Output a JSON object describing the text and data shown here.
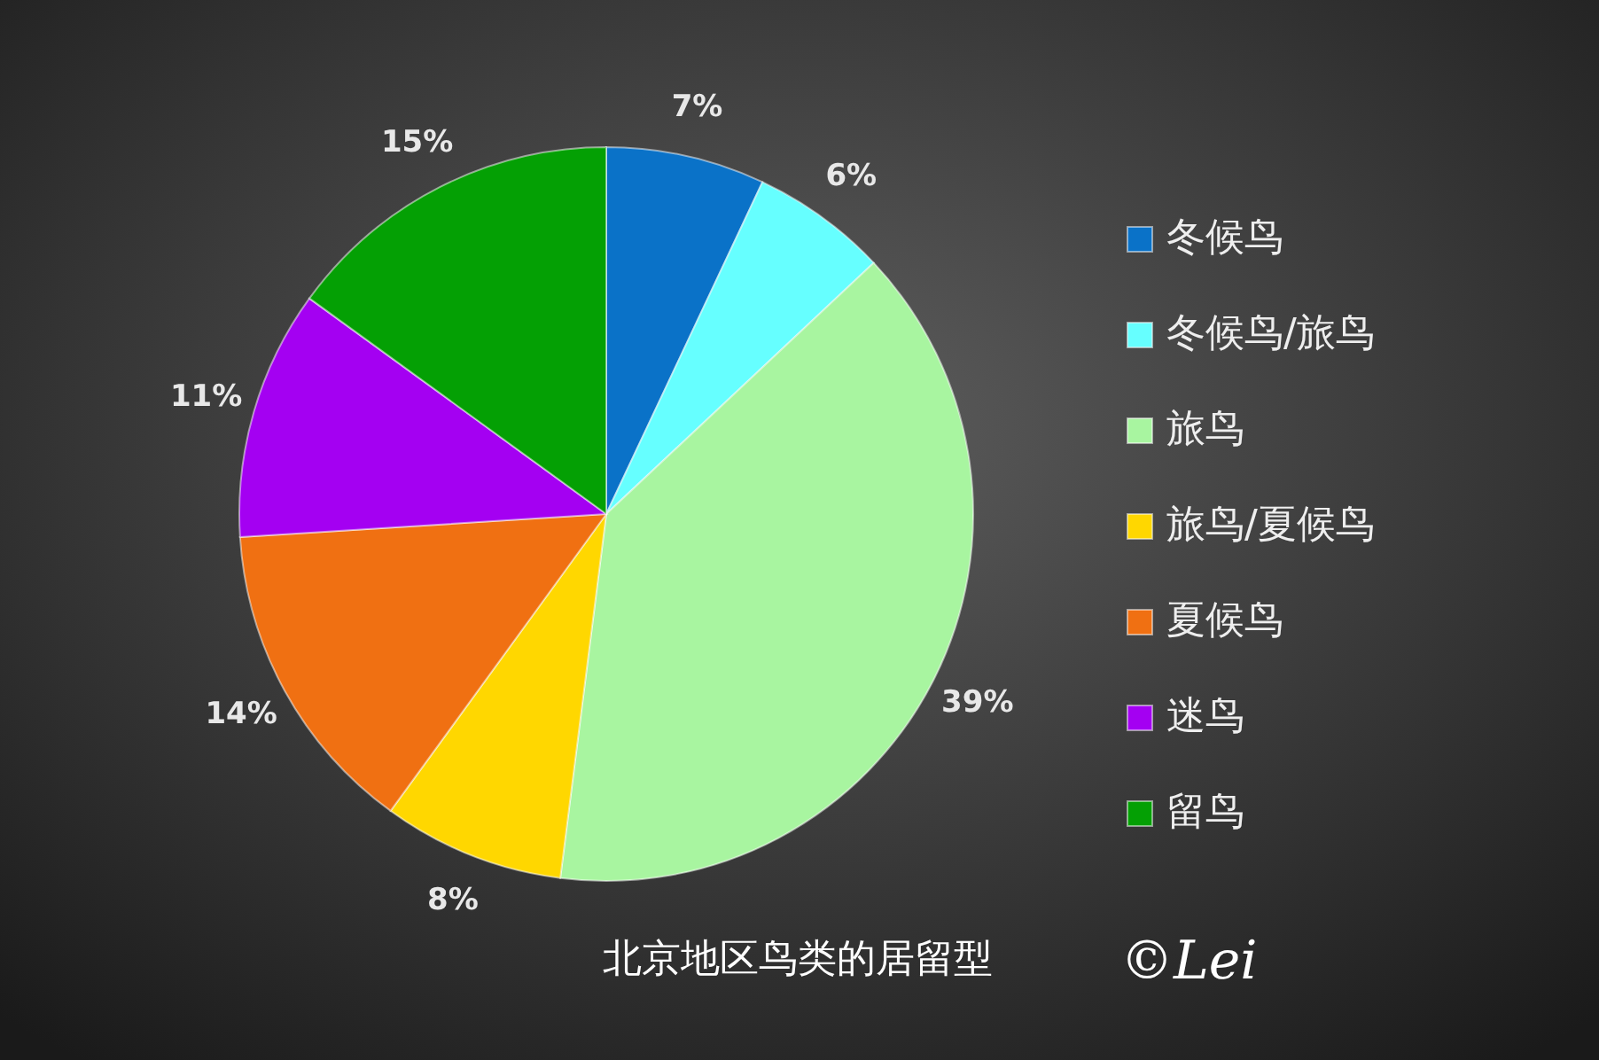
{
  "chart_data": {
    "type": "pie",
    "title": "北京地区鸟类的居留型",
    "categories": [
      "冬候鸟",
      "冬候鸟/旅鸟",
      "旅鸟",
      "旅鸟/夏候鸟",
      "夏候鸟",
      "迷鸟",
      "留鸟"
    ],
    "values": [
      7,
      6,
      39,
      8,
      14,
      11,
      15
    ],
    "colors": [
      "#0a72c8",
      "#66ffff",
      "#a8f5a0",
      "#ffd700",
      "#f07012",
      "#a400f2",
      "#04a004"
    ],
    "value_labels": [
      "7%",
      "6%",
      "39%",
      "8%",
      "14%",
      "11%",
      "15%"
    ],
    "legend": "right",
    "annotations": [
      "©Lei"
    ]
  }
}
